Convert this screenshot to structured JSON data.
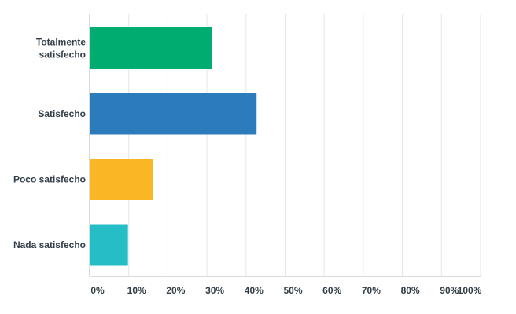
{
  "chart_data": {
    "type": "bar",
    "orientation": "horizontal",
    "title": "",
    "xlabel": "",
    "ylabel": "",
    "categories": [
      [
        "Totalmente",
        "satisfecho"
      ],
      [
        "Satisfecho"
      ],
      [
        "Poco satisfecho"
      ],
      [
        "Nada satisfecho"
      ]
    ],
    "values": [
      31.3,
      42.7,
      16.3,
      9.8
    ],
    "colors": [
      "#00ac6f",
      "#2c7bbd",
      "#fbb625",
      "#25bec7"
    ],
    "xlim": [
      0,
      100
    ],
    "xticks": [
      "0%",
      "10%",
      "20%",
      "30%",
      "40%",
      "50%",
      "60%",
      "70%",
      "80%",
      "90%",
      "100%"
    ],
    "grid": "vertical",
    "legend": "none"
  }
}
